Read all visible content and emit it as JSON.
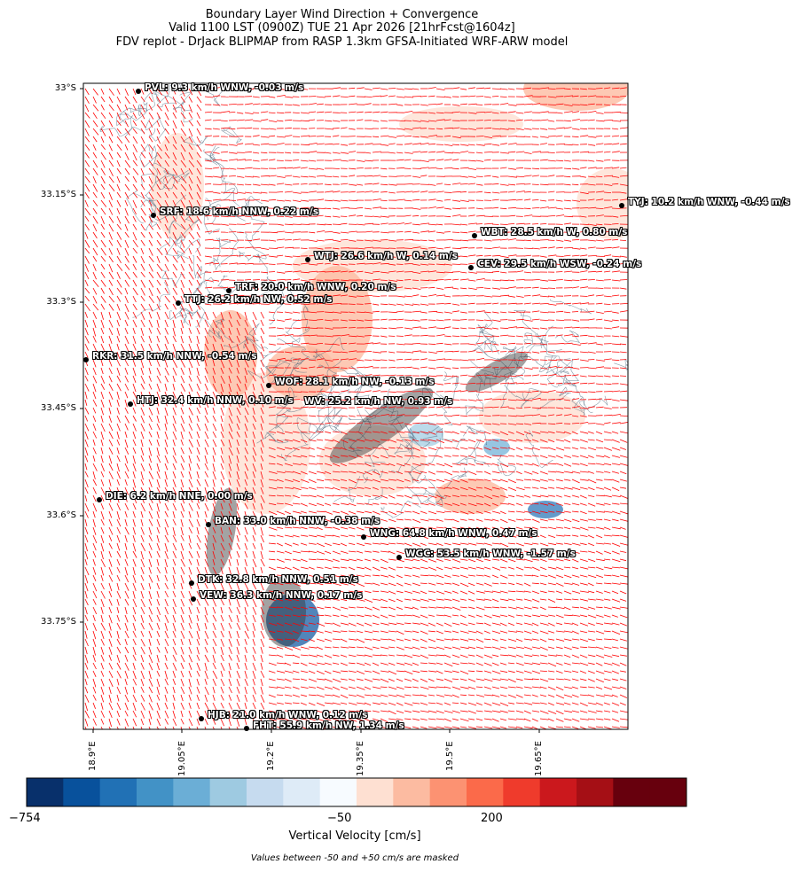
{
  "title": {
    "line1": "Boundary Layer Wind Direction + Convergence",
    "line2": "Valid 1100 LST (0900Z) TUE 21 Apr 2026 [21hrFcst@1604z]",
    "line3": "FDV replot - DrJack BLIPMAP from RASP 1.3km GFSA-Initiated WRF-ARW model"
  },
  "lat_ticks": [
    "33°S",
    "33.15°S",
    "33.3°S",
    "33.45°S",
    "33.6°S",
    "33.75°S"
  ],
  "lon_ticks": [
    "18.9°E",
    "19.05°E",
    "19.2°E",
    "19.35°E",
    "19.5°E",
    "19.65°E"
  ],
  "stations": [
    {
      "id": "PVL",
      "label": "PVL: 9.3 km/h WNW, -0.03 m/s"
    },
    {
      "id": "TYJ",
      "label": "TYJ: 10.2 km/h WNW, -0.44 m/s"
    },
    {
      "id": "SRF",
      "label": "SRF: 18.6 km/h NNW, 0.22 m/s"
    },
    {
      "id": "WBT",
      "label": "WBT: 28.5 km/h W, 0.80 m/s"
    },
    {
      "id": "WTJ",
      "label": "WTJ: 26.6 km/h W, 0.14 m/s"
    },
    {
      "id": "CEV",
      "label": "CEV: 29.5 km/h WSW, -0.24 m/s"
    },
    {
      "id": "TRF",
      "label": "TRF: 20.0 km/h WNW, 0.20 m/s"
    },
    {
      "id": "TTJ",
      "label": "TTJ: 26.2 km/h NW, 0.52 m/s"
    },
    {
      "id": "RKR",
      "label": "RKR: 31.5 km/h NNW, -0.54 m/s"
    },
    {
      "id": "WOF",
      "label": "WOF: 28.1 km/h NW, -0.13 m/s"
    },
    {
      "id": "HTJ",
      "label": "HTJ: 32.4 km/h NNW, 0.10 m/s"
    },
    {
      "id": "WV",
      "label": "WV: 25.2 km/h NW, 0.93 m/s"
    },
    {
      "id": "DIE",
      "label": "DIE: 6.2 km/h NNE, 0.00 m/s"
    },
    {
      "id": "BAN",
      "label": "BAN: 33.0 km/h NNW, -0.38 m/s"
    },
    {
      "id": "WNG",
      "label": "WNG: 64.8 km/h WNW, 0.47 m/s"
    },
    {
      "id": "WGC",
      "label": "WGC: 53.5 km/h WNW, -1.57 m/s"
    },
    {
      "id": "DTK",
      "label": "DTK: 32.8 km/h NNW, 0.51 m/s"
    },
    {
      "id": "VEW",
      "label": "VEW: 36.3 km/h NNW, 0.17 m/s"
    },
    {
      "id": "HJB",
      "label": "HJB: 21.0 km/h WNW, 0.12 m/s"
    },
    {
      "id": "FHT",
      "label": "FHT: 55.9 km/h NW, 1.34 m/s"
    }
  ],
  "colorbar": {
    "ticks": [
      "−754",
      "−50",
      "200"
    ],
    "label": "Vertical Velocity [cm/s]",
    "note": "Values between -50 and +50 cm/s are masked",
    "colors": [
      "#08306b",
      "#08519c",
      "#2171b5",
      "#4292c6",
      "#6baed6",
      "#9ecae1",
      "#c6dbef",
      "#deebf7",
      "#f7fbff",
      "#fee0d2",
      "#fcbba1",
      "#fc9272",
      "#fb6a4a",
      "#ef3b2c",
      "#cb181d",
      "#a50f15",
      "#67000d",
      "#67000d"
    ]
  },
  "colors": {
    "wind_arrow": "#ff0000",
    "terrain_contour": "#4f6a80",
    "dark_terrain": "#333333"
  }
}
